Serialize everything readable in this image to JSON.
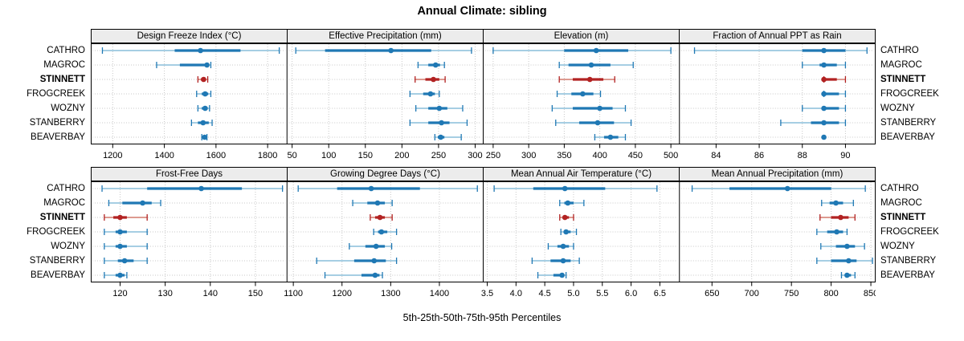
{
  "title": "Annual Climate: sibling",
  "caption": "5th-25th-50th-75th-95th Percentiles",
  "sites": [
    "CATHRO",
    "MAGROC",
    "STINNETT",
    "FROGCREEK",
    "WOZNY",
    "STANBERRY",
    "BEAVERBAY"
  ],
  "highlight_site": "STINNETT",
  "colors": {
    "blue": "#1f78b4",
    "blue_light": "#a6cee3",
    "red": "#b22222",
    "red_light": "#dd9a90",
    "grid": "#c8c8c8",
    "header_bg": "#ececec",
    "border": "#000000"
  },
  "chart_data": {
    "type": "trellis-dotplot-percentiles",
    "percentile_labels": [
      "5th",
      "25th",
      "50th",
      "75th",
      "95th"
    ],
    "panels": [
      {
        "label": "Design Freeze Index (°C)",
        "row": 0,
        "xlim": [
          1115,
          1875
        ],
        "ticks": [
          1200,
          1400,
          1600,
          1800
        ],
        "tick_labels": [
          "1200",
          "1400",
          "1600",
          "1800"
        ],
        "values": {
          "CATHRO": [
            1160,
            1440,
            1540,
            1695,
            1845
          ],
          "MAGROC": [
            1370,
            1460,
            1565,
            1572,
            1580
          ],
          "STINNETT": [
            1530,
            1542,
            1552,
            1560,
            1568
          ],
          "FROGCREEK": [
            1525,
            1545,
            1558,
            1570,
            1580
          ],
          "WOZNY": [
            1530,
            1545,
            1558,
            1568,
            1575
          ],
          "STANBERRY": [
            1505,
            1530,
            1550,
            1572,
            1585
          ],
          "BEAVERBAY": [
            1545,
            1550,
            1556,
            1560,
            1565
          ]
        }
      },
      {
        "label": "Effective Precipitation (mm)",
        "row": 0,
        "xlim": [
          43,
          311
        ],
        "ticks": [
          50,
          100,
          150,
          200,
          250,
          300
        ],
        "tick_labels": [
          "50",
          "100",
          "150",
          "200",
          "250",
          "300"
        ],
        "values": {
          "CATHRO": [
            55,
            95,
            185,
            240,
            295
          ],
          "MAGROC": [
            222,
            236,
            246,
            252,
            258
          ],
          "STINNETT": [
            218,
            232,
            243,
            251,
            259
          ],
          "FROGCREEK": [
            211,
            229,
            239,
            245,
            251
          ],
          "WOZNY": [
            219,
            236,
            251,
            262,
            283
          ],
          "STANBERRY": [
            211,
            236,
            254,
            265,
            289
          ],
          "BEAVERBAY": [
            245,
            249,
            253,
            258,
            281
          ]
        }
      },
      {
        "label": "Elevation (m)",
        "row": 0,
        "xlim": [
          236,
          512
        ],
        "ticks": [
          250,
          300,
          350,
          400,
          450,
          500
        ],
        "tick_labels": [
          "250",
          "300",
          "350",
          "400",
          "450",
          "500"
        ],
        "values": {
          "CATHRO": [
            250,
            350,
            395,
            440,
            500
          ],
          "MAGROC": [
            343,
            356,
            388,
            415,
            447
          ],
          "STINNETT": [
            343,
            362,
            386,
            405,
            421
          ],
          "FROGCREEK": [
            340,
            360,
            376,
            391,
            401
          ],
          "WOZNY": [
            333,
            362,
            400,
            418,
            436
          ],
          "STANBERRY": [
            338,
            371,
            397,
            420,
            444
          ],
          "BEAVERBAY": [
            393,
            406,
            415,
            426,
            436
          ]
        }
      },
      {
        "label": "Fraction of Annual PPT as Rain",
        "row": 0,
        "xlim": [
          82.3,
          91.4
        ],
        "ticks": [
          84,
          86,
          88,
          90
        ],
        "tick_labels": [
          "84",
          "86",
          "88",
          "90"
        ],
        "values": {
          "CATHRO": [
            83,
            88,
            89,
            90,
            91
          ],
          "MAGROC": [
            88,
            88.8,
            89,
            89.6,
            90
          ],
          "STINNETT": [
            89,
            89,
            89,
            89.6,
            90
          ],
          "FROGCREEK": [
            89,
            89,
            89,
            89.7,
            90
          ],
          "WOZNY": [
            88,
            88.9,
            89,
            89.7,
            90
          ],
          "STANBERRY": [
            87,
            88.4,
            89,
            89.7,
            90
          ],
          "BEAVERBAY": [
            89,
            89,
            89,
            89,
            89
          ]
        }
      },
      {
        "label": "Frost-Free Days",
        "row": 1,
        "xlim": [
          113.5,
          157
        ],
        "ticks": [
          120,
          130,
          140,
          150
        ],
        "tick_labels": [
          "120",
          "130",
          "140",
          "150"
        ],
        "values": {
          "CATHRO": [
            116,
            126,
            138,
            147,
            156
          ],
          "MAGROC": [
            117.5,
            120.5,
            125,
            127,
            129
          ],
          "STINNETT": [
            116.5,
            118.5,
            120,
            121.5,
            126
          ],
          "FROGCREEK": [
            116.5,
            119,
            120,
            121.5,
            126
          ],
          "WOZNY": [
            116.5,
            119,
            120,
            121.5,
            126
          ],
          "STANBERRY": [
            116.5,
            119.5,
            121,
            123,
            126
          ],
          "BEAVERBAY": [
            116.5,
            119,
            120,
            121,
            121.5
          ]
        }
      },
      {
        "label": "Growing Degree Days (°C)",
        "row": 1,
        "xlim": [
          1087,
          1490
        ],
        "ticks": [
          1100,
          1200,
          1300,
          1400
        ],
        "tick_labels": [
          "1100",
          "1200",
          "1300",
          "1400"
        ],
        "values": {
          "CATHRO": [
            1110,
            1190,
            1260,
            1360,
            1478
          ],
          "MAGROC": [
            1222,
            1252,
            1273,
            1288,
            1303
          ],
          "STINNETT": [
            1258,
            1268,
            1278,
            1288,
            1303
          ],
          "FROGCREEK": [
            1265,
            1274,
            1281,
            1293,
            1312
          ],
          "WOZNY": [
            1215,
            1248,
            1270,
            1288,
            1302
          ],
          "STANBERRY": [
            1148,
            1225,
            1266,
            1290,
            1312
          ],
          "BEAVERBAY": [
            1165,
            1240,
            1268,
            1277,
            1283
          ]
        }
      },
      {
        "label": "Mean Annual Air Temperature (°C)",
        "row": 1,
        "xlim": [
          3.43,
          6.84
        ],
        "ticks": [
          3.5,
          4.0,
          4.5,
          5.0,
          5.5,
          6.0,
          6.5
        ],
        "tick_labels": [
          "3.5",
          "4.0",
          "4.5",
          "5.0",
          "5.5",
          "6.0",
          "6.5"
        ],
        "values": {
          "CATHRO": [
            3.62,
            4.3,
            4.85,
            5.55,
            6.45
          ],
          "MAGROC": [
            4.76,
            4.84,
            4.9,
            5.0,
            5.18
          ],
          "STINNETT": [
            4.76,
            4.81,
            4.85,
            4.92,
            5.0
          ],
          "FROGCREEK": [
            4.78,
            4.83,
            4.87,
            4.95,
            5.05
          ],
          "WOZNY": [
            4.56,
            4.72,
            4.82,
            4.92,
            5.0
          ],
          "STANBERRY": [
            4.28,
            4.6,
            4.82,
            4.95,
            5.1
          ],
          "BEAVERBAY": [
            4.38,
            4.65,
            4.8,
            4.84,
            4.87
          ]
        }
      },
      {
        "label": "Mean Annual Precipitation (mm)",
        "row": 1,
        "xlim": [
          609,
          856
        ],
        "ticks": [
          650,
          700,
          750,
          800,
          850
        ],
        "tick_labels": [
          "650",
          "700",
          "750",
          "800",
          "850"
        ],
        "values": {
          "CATHRO": [
            625,
            672,
            745,
            800,
            843
          ],
          "MAGROC": [
            788,
            798,
            806,
            815,
            828
          ],
          "STINNETT": [
            786,
            800,
            812,
            822,
            830
          ],
          "FROGCREEK": [
            782,
            795,
            807,
            815,
            820
          ],
          "WOZNY": [
            787,
            806,
            820,
            830,
            842
          ],
          "STANBERRY": [
            782,
            800,
            822,
            832,
            852
          ],
          "BEAVERBAY": [
            813,
            817,
            820,
            825,
            830
          ]
        }
      }
    ]
  }
}
